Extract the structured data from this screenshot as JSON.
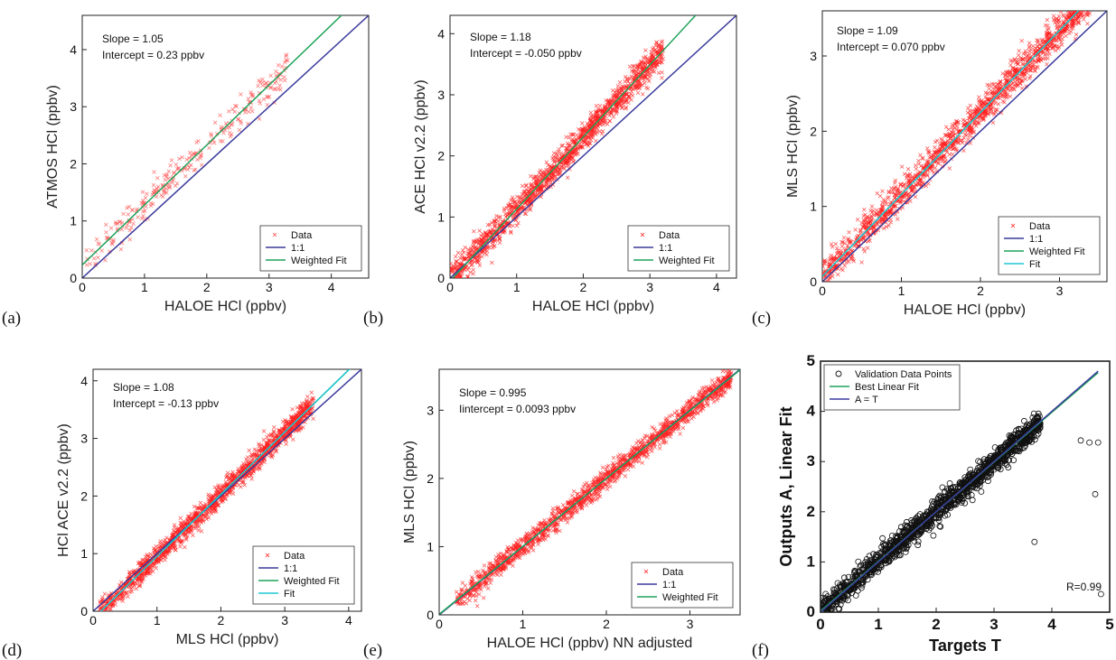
{
  "chart_data": [
    {
      "panel": "(a)",
      "type": "scatter",
      "xlabel": "HALOE HCl (ppbv)",
      "ylabel": "ATMOS HCl (ppbv)",
      "xlim": [
        0,
        4.6
      ],
      "ylim": [
        0,
        4.6
      ],
      "xticks": [
        0,
        1,
        2,
        3,
        4
      ],
      "yticks": [
        0,
        1,
        2,
        3,
        4
      ],
      "annotations": [
        "Slope = 1.05",
        "Intercept = 0.23 ppbv"
      ],
      "legend": [
        "Data",
        "1:1",
        "Weighted Fit"
      ],
      "legend_position": "bottom-right",
      "lines": [
        {
          "name": "1:1",
          "slope": 1,
          "intercept": 0,
          "color": "#3a3a9c"
        },
        {
          "name": "Weighted Fit",
          "slope": 1.05,
          "intercept": 0.23,
          "color": "#1fa35a"
        }
      ],
      "scatter": {
        "name": "Data",
        "marker": "x",
        "color": "#ff4d4d",
        "n": 260,
        "x_range": [
          0.05,
          3.3
        ],
        "slope": 1.05,
        "intercept": 0.23,
        "noise": 0.14
      }
    },
    {
      "panel": "(b)",
      "type": "scatter",
      "xlabel": "HALOE HCl (ppbv)",
      "ylabel": "ACE HCl v2.2  (ppbv)",
      "xlim": [
        0,
        4.3
      ],
      "ylim": [
        0,
        4.3
      ],
      "xticks": [
        0,
        1,
        2,
        3,
        4
      ],
      "yticks": [
        0,
        1,
        2,
        3,
        4
      ],
      "annotations": [
        "Slope = 1.18",
        "Intercept = -0.050 ppbv"
      ],
      "legend": [
        "Data",
        "1:1",
        "Weighted Fit"
      ],
      "legend_position": "bottom-right",
      "lines": [
        {
          "name": "1:1",
          "slope": 1,
          "intercept": 0,
          "color": "#3a3a9c"
        },
        {
          "name": "Weighted Fit",
          "slope": 1.18,
          "intercept": -0.05,
          "color": "#1fa35a"
        }
      ],
      "scatter": {
        "name": "Data",
        "marker": "x",
        "color": "#ff2020",
        "n": 1400,
        "x_range": [
          0,
          3.2
        ],
        "slope": 1.18,
        "intercept": -0.05,
        "noise": 0.12
      }
    },
    {
      "panel": "(c)",
      "type": "scatter",
      "xlabel": "HALOE HCl (ppbv)",
      "ylabel": "MLS HCl (ppbv)",
      "xlim": [
        0,
        3.6
      ],
      "ylim": [
        0,
        3.6
      ],
      "xticks": [
        0,
        1,
        2,
        3
      ],
      "yticks": [
        0,
        1,
        2,
        3
      ],
      "annotations": [
        "Slope = 1.09",
        "Intercept = 0.070 ppbv"
      ],
      "legend": [
        "Data",
        "1:1",
        "Weighted Fit",
        "Fit"
      ],
      "legend_position": "bottom-right",
      "lines": [
        {
          "name": "1:1",
          "slope": 1,
          "intercept": 0,
          "color": "#3a3a9c"
        },
        {
          "name": "Weighted Fit",
          "slope": 1.09,
          "intercept": 0.07,
          "color": "#1fa35a"
        },
        {
          "name": "Fit",
          "slope": 1.09,
          "intercept": 0.07,
          "color": "#1fc7d4"
        }
      ],
      "scatter": {
        "name": "Data",
        "marker": "x",
        "color": "#ff2020",
        "n": 1500,
        "x_range": [
          0,
          3.4
        ],
        "slope": 1.09,
        "intercept": 0.07,
        "noise": 0.11
      }
    },
    {
      "panel": "(d)",
      "type": "scatter",
      "xlabel": "MLS HCl  (ppbv)",
      "ylabel": "HCl ACE v2.2 (ppbv)",
      "xlim": [
        0,
        4.2
      ],
      "ylim": [
        0,
        4.2
      ],
      "xticks": [
        0,
        1,
        2,
        3,
        4
      ],
      "yticks": [
        0,
        1,
        2,
        3,
        4
      ],
      "annotations": [
        "Slope = 1.08",
        "Intercept = -0.13 ppbv"
      ],
      "legend": [
        "Data",
        "1:1",
        "Weighted Fit",
        "Fit"
      ],
      "legend_position": "bottom-right",
      "lines": [
        {
          "name": "1:1",
          "slope": 1,
          "intercept": 0,
          "color": "#3a3a9c"
        },
        {
          "name": "Weighted Fit",
          "slope": 1.08,
          "intercept": -0.13,
          "color": "#1fa35a"
        },
        {
          "name": "Fit",
          "slope": 1.08,
          "intercept": -0.13,
          "color": "#1fc7d4"
        }
      ],
      "scatter": {
        "name": "Data",
        "marker": "x",
        "color": "#ff2020",
        "n": 1500,
        "x_range": [
          0.1,
          3.45
        ],
        "slope": 1.08,
        "intercept": -0.13,
        "noise": 0.1
      }
    },
    {
      "panel": "(e)",
      "type": "scatter",
      "xlabel": "HALOE HCl (ppbv) NN adjusted",
      "ylabel": "MLS HCl (ppbv)",
      "xlim": [
        0,
        3.6
      ],
      "ylim": [
        0,
        3.6
      ],
      "xticks": [
        0,
        1,
        2,
        3
      ],
      "yticks": [
        0,
        1,
        2,
        3
      ],
      "annotations": [
        "Slope = 0.995",
        "Iintercept = 0.0093 ppbv"
      ],
      "legend": [
        "Data",
        "1:1",
        "Weighted Fit"
      ],
      "legend_position": "bottom-right",
      "lines": [
        {
          "name": "1:1",
          "slope": 1,
          "intercept": 0,
          "color": "#3a3a9c"
        },
        {
          "name": "Weighted Fit",
          "slope": 0.995,
          "intercept": 0.0093,
          "color": "#1fa35a"
        }
      ],
      "scatter": {
        "name": "Data",
        "marker": "x",
        "color": "#ff2020",
        "n": 1500,
        "x_range": [
          0.2,
          3.5
        ],
        "slope": 0.995,
        "intercept": 0.0093,
        "noise": 0.08
      }
    },
    {
      "panel": "(f)",
      "type": "scatter",
      "xlabel": "Targets T",
      "ylabel": "Outputs A,  Linear Fit",
      "xlim": [
        0,
        5
      ],
      "ylim": [
        0,
        5
      ],
      "xticks": [
        0,
        1,
        2,
        3,
        4,
        5
      ],
      "yticks": [
        0,
        1,
        2,
        3,
        4,
        5
      ],
      "annotations": [
        "R=0.99"
      ],
      "legend": [
        "Validation Data Points",
        "Best Linear Fit",
        "A = T"
      ],
      "legend_position": "top-left",
      "lines": [
        {
          "name": "Best Linear Fit",
          "slope": 0.99,
          "intercept": 0.02,
          "color": "#1fa35a",
          "x_end": 4.8
        },
        {
          "name": "A = T",
          "slope": 1,
          "intercept": 0,
          "color": "#3a3a9c",
          "x_end": 4.8
        }
      ],
      "scatter": {
        "name": "Validation Data Points",
        "marker": "o",
        "color": "#111111",
        "n": 1300,
        "x_range": [
          0,
          3.8
        ],
        "slope": 0.99,
        "intercept": 0.02,
        "noise": 0.12
      },
      "outliers": [
        [
          4.5,
          3.42
        ],
        [
          4.65,
          3.38
        ],
        [
          4.8,
          3.38
        ],
        [
          4.75,
          2.35
        ],
        [
          4.85,
          0.36
        ],
        [
          3.7,
          1.4
        ]
      ]
    }
  ],
  "panel_letters": [
    "(a)",
    "(b)",
    "(c)",
    "(d)",
    "(e)",
    "(f)"
  ]
}
